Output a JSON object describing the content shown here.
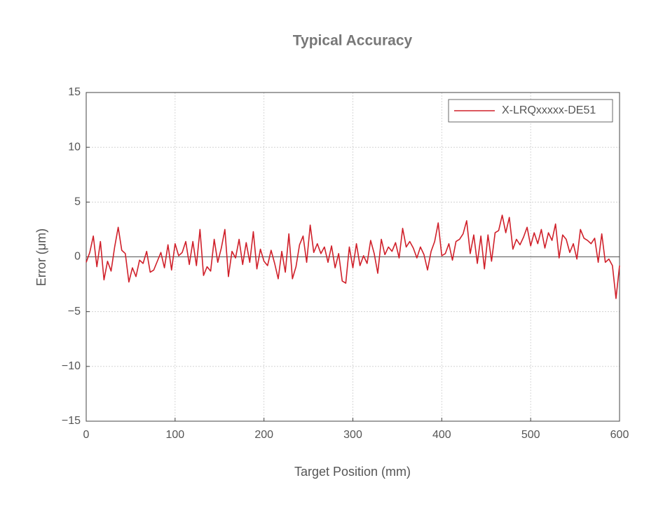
{
  "chart_data": {
    "type": "line",
    "title": "Typical Accuracy",
    "x_label": "Target Position (mm)",
    "y_label": "Error (μm)",
    "x": [
      0,
      4,
      8,
      12,
      16,
      20,
      24,
      28,
      32,
      36,
      40,
      44,
      48,
      52,
      56,
      60,
      64,
      68,
      72,
      76,
      80,
      84,
      88,
      92,
      96,
      100,
      104,
      108,
      112,
      116,
      120,
      124,
      128,
      132,
      136,
      140,
      144,
      148,
      152,
      156,
      160,
      164,
      168,
      172,
      176,
      180,
      184,
      188,
      192,
      196,
      200,
      204,
      208,
      212,
      216,
      220,
      224,
      228,
      232,
      236,
      240,
      244,
      248,
      252,
      256,
      260,
      264,
      268,
      272,
      276,
      280,
      284,
      288,
      292,
      296,
      300,
      304,
      308,
      312,
      316,
      320,
      324,
      328,
      332,
      336,
      340,
      344,
      348,
      352,
      356,
      360,
      364,
      368,
      372,
      376,
      380,
      384,
      388,
      392,
      396,
      400,
      404,
      408,
      412,
      416,
      420,
      424,
      428,
      432,
      436,
      440,
      444,
      448,
      452,
      456,
      460,
      464,
      468,
      472,
      476,
      480,
      484,
      488,
      492,
      496,
      500,
      504,
      508,
      512,
      516,
      520,
      524,
      528,
      532,
      536,
      540,
      544,
      548,
      552,
      556,
      560,
      564,
      568,
      572,
      576,
      580,
      584,
      588,
      592,
      596,
      600
    ],
    "series": [
      {
        "name": "X-LRQxxxxx-DE51",
        "color": "#d0202a",
        "values": [
          -0.5,
          0.4,
          1.9,
          -0.9,
          1.4,
          -2.1,
          -0.4,
          -1.3,
          0.9,
          2.7,
          0.6,
          0.3,
          -2.3,
          -1.0,
          -1.8,
          -0.3,
          -0.6,
          0.5,
          -1.4,
          -1.2,
          -0.4,
          0.4,
          -1.0,
          1.1,
          -1.2,
          1.2,
          0.1,
          0.4,
          1.4,
          -0.7,
          1.4,
          -0.8,
          2.5,
          -1.7,
          -0.9,
          -1.3,
          1.6,
          -0.5,
          0.8,
          2.5,
          -1.8,
          0.5,
          -0.1,
          1.6,
          -0.7,
          1.3,
          -0.5,
          2.3,
          -1.1,
          0.7,
          -0.4,
          -0.8,
          0.6,
          -0.6,
          -2.0,
          0.5,
          -1.4,
          2.1,
          -2.0,
          -0.9,
          1.1,
          1.9,
          -0.5,
          2.9,
          0.4,
          1.2,
          0.3,
          0.9,
          -0.5,
          1.0,
          -1.0,
          0.3,
          -2.2,
          -2.4,
          0.9,
          -1.0,
          1.2,
          -0.8,
          0.1,
          -0.6,
          1.5,
          0.3,
          -1.5,
          1.6,
          0.2,
          0.9,
          0.5,
          1.3,
          -0.1,
          2.6,
          0.9,
          1.4,
          0.8,
          -0.1,
          0.9,
          0.2,
          -1.2,
          0.5,
          1.4,
          3.1,
          0.1,
          0.3,
          1.2,
          -0.3,
          1.4,
          1.6,
          2.1,
          3.3,
          0.3,
          2.0,
          -0.6,
          1.9,
          -1.1,
          2.0,
          -0.4,
          2.2,
          2.4,
          3.8,
          2.2,
          3.6,
          0.7,
          1.6,
          1.1,
          1.8,
          2.7,
          1.0,
          2.2,
          1.2,
          2.5,
          0.8,
          2.2,
          1.5,
          3.0,
          -0.1,
          2.0,
          1.6,
          0.4,
          1.2,
          -0.2,
          2.5,
          1.7,
          1.5,
          1.2,
          1.7,
          -0.5,
          2.1,
          -0.5,
          -0.2,
          -0.8,
          -3.8,
          -0.8
        ]
      }
    ],
    "xlim": [
      0,
      600
    ],
    "xticks": [
      0,
      100,
      200,
      300,
      400,
      500,
      600
    ],
    "ylim": [
      -15,
      15
    ],
    "yticks": [
      {
        "value": -15,
        "label": "−15"
      },
      {
        "value": -10,
        "label": "−10"
      },
      {
        "value": -5,
        "label": "−5"
      },
      0,
      5,
      10,
      15
    ],
    "grid": true,
    "legend": "upper right"
  }
}
